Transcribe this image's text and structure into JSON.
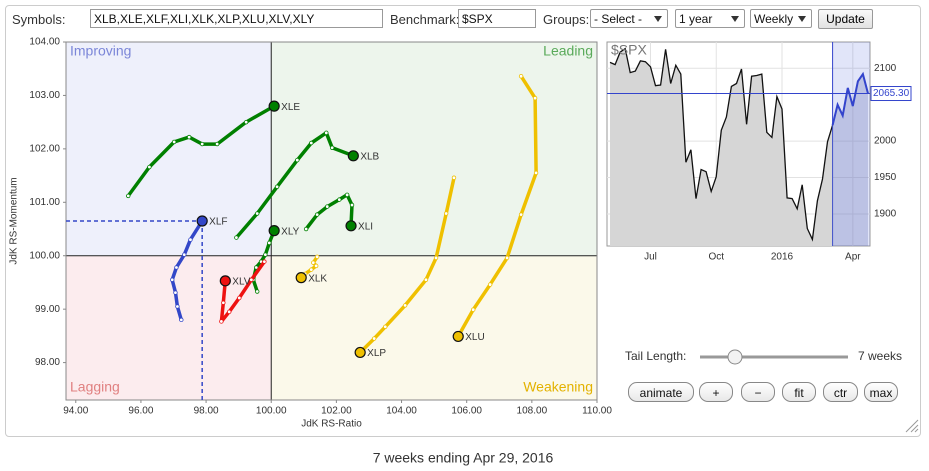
{
  "toolbar": {
    "symbols_label": "Symbols:",
    "symbols": "XLB,XLE,XLF,XLI,XLK,XLP,XLU,XLV,XLY",
    "benchmark_label": "Benchmark:",
    "benchmark": "$SPX",
    "groups_label": "Groups:",
    "groups": "- Select -",
    "period": "1 year",
    "interval": "Weekly",
    "update": "Update"
  },
  "chart_data": [
    {
      "type": "scatter",
      "x_label": "JdK RS-Ratio",
      "y_label": "JdK RS-Momentum",
      "quadrant_center": [
        100,
        100
      ],
      "quadrant_labels": {
        "improving": "Improving",
        "leading": "Leading",
        "lagging": "Lagging",
        "weakening": "Weakening"
      },
      "xlim": [
        93.7,
        110
      ],
      "ylim": [
        97.3,
        104
      ],
      "xticks": [
        {
          "value": 94,
          "label": "94.00"
        },
        {
          "value": 96,
          "label": "96.00"
        },
        {
          "value": 98,
          "label": "98.00"
        },
        {
          "value": 100,
          "label": "100.00"
        },
        {
          "value": 102,
          "label": "102.00"
        },
        {
          "value": 104,
          "label": "104.00"
        },
        {
          "value": 106,
          "label": "106.00"
        },
        {
          "value": 108,
          "label": "108.00"
        },
        {
          "value": 110,
          "label": "110.00"
        }
      ],
      "yticks": [
        {
          "value": 98,
          "label": "98.00"
        },
        {
          "value": 99,
          "label": "99.00"
        },
        {
          "value": 100,
          "label": "100.00"
        },
        {
          "value": 101,
          "label": "101.00"
        },
        {
          "value": 102,
          "label": "102.00"
        },
        {
          "value": 103,
          "label": "103.00"
        },
        {
          "value": 104,
          "label": "104.00"
        }
      ],
      "series": [
        {
          "name": "XLE",
          "color": "#008000",
          "x": [
            95.61,
            96.26,
            97.02,
            97.48,
            97.88,
            98.34,
            99.23,
            100.09
          ],
          "values": [
            101.12,
            101.66,
            102.13,
            102.22,
            102.09,
            102.09,
            102.5,
            102.8
          ]
        },
        {
          "name": "XLB",
          "color": "#008000",
          "x": [
            98.93,
            99.57,
            100.18,
            100.8,
            101.23,
            101.69,
            101.87,
            102.52
          ],
          "values": [
            100.34,
            100.79,
            101.29,
            101.79,
            102.11,
            102.3,
            102.02,
            101.87
          ]
        },
        {
          "name": "XLI",
          "color": "#008000",
          "x": [
            101.07,
            101.41,
            101.72,
            102.09,
            102.33,
            102.48,
            102.45
          ],
          "values": [
            100.5,
            100.77,
            100.92,
            101.05,
            101.14,
            100.95,
            100.56
          ]
        },
        {
          "name": "XLY",
          "color": "#008000",
          "x": [
            99.57,
            99.45,
            99.54,
            99.69,
            99.82,
            99.94,
            100.09
          ],
          "values": [
            99.33,
            99.55,
            99.78,
            99.89,
            100.02,
            100.24,
            100.47
          ]
        },
        {
          "name": "XLF",
          "color": "#3347c8",
          "x": [
            97.24,
            97.12,
            97.06,
            96.96,
            97.09,
            97.33,
            97.52,
            97.88
          ],
          "values": [
            98.8,
            99.05,
            99.31,
            99.55,
            99.78,
            100.02,
            100.3,
            100.65
          ]
        },
        {
          "name": "XLV",
          "color": "#ee1111",
          "x": [
            99.79,
            99.39,
            99.02,
            98.71,
            98.47,
            98.53,
            98.59
          ],
          "values": [
            99.89,
            99.55,
            99.21,
            98.95,
            98.77,
            99.12,
            99.53
          ]
        },
        {
          "name": "XLK",
          "color": "#efc000",
          "x": [
            101.41,
            101.29,
            101.38,
            101.23,
            101.04,
            100.92
          ],
          "values": [
            99.98,
            99.87,
            99.81,
            99.74,
            99.66,
            99.59
          ]
        },
        {
          "name": "XLP",
          "color": "#efc000",
          "x": [
            105.61,
            105.37,
            105.06,
            104.75,
            104.11,
            103.5,
            103.16,
            102.73
          ],
          "values": [
            101.46,
            100.79,
            99.96,
            99.55,
            99.07,
            98.67,
            98.45,
            98.19
          ]
        },
        {
          "name": "XLU",
          "color": "#efc000",
          "x": [
            107.67,
            108.1,
            108.13,
            107.67,
            107.24,
            106.72,
            106.2,
            105.74
          ],
          "values": [
            103.36,
            102.95,
            101.55,
            100.77,
            99.96,
            99.46,
            98.99,
            98.49
          ]
        }
      ]
    },
    {
      "type": "line",
      "title": "$SPX",
      "xlim": [
        0,
        51
      ],
      "ylim": [
        1856,
        2136
      ],
      "xticks": [
        {
          "value": 8,
          "label": "Jul"
        },
        {
          "value": 21,
          "label": "Oct"
        },
        {
          "value": 34,
          "label": "2016"
        },
        {
          "value": 48,
          "label": "Apr"
        }
      ],
      "yticks": [
        1900,
        1950,
        2000,
        2100
      ],
      "price_line": {
        "value": 2065.3,
        "label": "2065.30"
      },
      "series": [
        {
          "color": "#111111",
          "values": [
            2108,
            2105,
            2122,
            2127,
            2094,
            2096,
            2110,
            2109,
            2102,
            2076,
            2077,
            2126,
            2079,
            2104,
            2092,
            1971,
            1988,
            1921,
            1961,
            1958,
            1931,
            1951,
            2015,
            2033,
            2075,
            2079,
            2099,
            2023,
            2089,
            2090,
            2092,
            2012,
            2005,
            2061,
            2044,
            1922,
            1921,
            1907,
            1940,
            1880,
            1865,
            1918,
            1948,
            1999,
            2022,
            null,
            null,
            null,
            null,
            null,
            null,
            null
          ]
        },
        {
          "color": "#3344cc",
          "values": [
            null,
            null,
            null,
            null,
            null,
            null,
            null,
            null,
            null,
            null,
            null,
            null,
            null,
            null,
            null,
            null,
            null,
            null,
            null,
            null,
            null,
            null,
            null,
            null,
            null,
            null,
            null,
            null,
            null,
            null,
            null,
            null,
            null,
            null,
            null,
            null,
            null,
            null,
            null,
            null,
            null,
            null,
            null,
            null,
            2022,
            2050,
            2035,
            2073,
            2048,
            2082,
            2092,
            2065.3
          ]
        }
      ]
    }
  ],
  "controls": {
    "tail_label": "Tail Length:",
    "tail_value": "7 weeks",
    "buttons": [
      "animate",
      "+",
      "−",
      "fit",
      "ctr",
      "max"
    ]
  },
  "caption": "7 weeks ending Apr 29, 2016"
}
